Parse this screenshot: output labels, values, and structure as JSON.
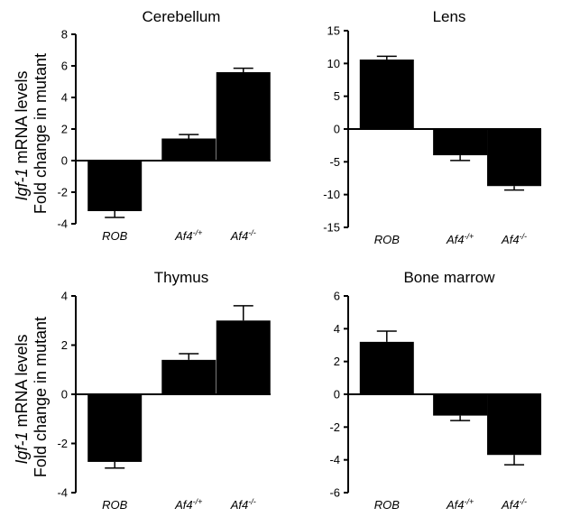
{
  "ylabel": {
    "line1_italic": "Igf-1",
    "line1_rest": " mRNA levels",
    "line2": "Fold change in mutant"
  },
  "chart_data": [
    {
      "type": "bar",
      "title": "Cerebellum",
      "categories": [
        "ROB",
        "Af4-/+",
        "Af4-/-"
      ],
      "values": [
        -3.2,
        1.4,
        5.6
      ],
      "error": [
        0.4,
        0.25,
        0.25
      ],
      "ylim": [
        -4,
        8
      ],
      "yticks": [
        -4,
        -2,
        0,
        2,
        4,
        6,
        8
      ]
    },
    {
      "type": "bar",
      "title": "Lens",
      "categories": [
        "ROB",
        "Af4-/+",
        "Af4-/-"
      ],
      "values": [
        10.6,
        -4.0,
        -8.7
      ],
      "error": [
        0.5,
        0.8,
        0.6
      ],
      "ylim": [
        -15,
        15
      ],
      "yticks": [
        -15,
        -10,
        -5,
        0,
        5,
        10,
        15
      ]
    },
    {
      "type": "bar",
      "title": "Thymus",
      "categories": [
        "ROB",
        "Af4-/+",
        "Af4-/-"
      ],
      "values": [
        -2.75,
        1.4,
        3.0
      ],
      "error": [
        0.25,
        0.25,
        0.6
      ],
      "ylim": [
        -4,
        4
      ],
      "yticks": [
        -4,
        -2,
        0,
        2,
        4
      ]
    },
    {
      "type": "bar",
      "title": "Bone marrow",
      "categories": [
        "ROB",
        "Af4-/+",
        "Af4-/-"
      ],
      "values": [
        3.2,
        -1.3,
        -3.7
      ],
      "error": [
        0.65,
        0.3,
        0.6
      ],
      "ylim": [
        -6,
        6
      ],
      "yticks": [
        -6,
        -4,
        -2,
        0,
        2,
        4,
        6
      ]
    }
  ]
}
